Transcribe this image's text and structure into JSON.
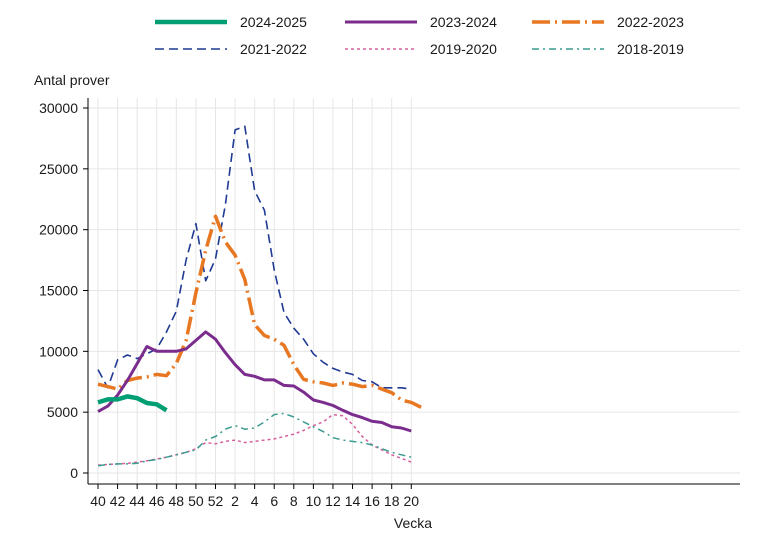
{
  "chart_data": {
    "type": "line",
    "title": "",
    "ylabel": "Antal prover",
    "xlabel": "Vecka",
    "ylim": [
      0,
      30000
    ],
    "yticks": [
      0,
      5000,
      10000,
      15000,
      20000,
      25000,
      30000
    ],
    "xticks": [
      "40",
      "42",
      "44",
      "46",
      "48",
      "50",
      "52",
      "2",
      "4",
      "6",
      "8",
      "10",
      "12",
      "14",
      "16",
      "18",
      "20"
    ],
    "grid": true,
    "legend_position": "top",
    "series": [
      {
        "name": "2024-2025",
        "color": "#009E73",
        "style": "solid-thick",
        "values": [
          5800,
          6050,
          6050,
          6300,
          6150,
          5750,
          5650,
          5150
        ]
      },
      {
        "name": "2023-2024",
        "color": "#7B2D8E",
        "style": "solid",
        "values": [
          5050,
          5500,
          6400,
          7600,
          9000,
          10400,
          10000,
          10000,
          10000,
          10200,
          10900,
          11600,
          11000,
          9900,
          8900,
          8100,
          7950,
          7650,
          7650,
          7200,
          7150,
          6650,
          6000,
          5800,
          5550,
          5150,
          4800,
          4550,
          4250,
          4150,
          3800,
          3700,
          3450
        ]
      },
      {
        "name": "2022-2023",
        "color": "#E87722",
        "style": "longdash-dot",
        "values": [
          7300,
          7100,
          6900,
          7600,
          7800,
          7900,
          8100,
          8000,
          9000,
          10900,
          14800,
          18300,
          21100,
          19000,
          17900,
          15900,
          12200,
          11300,
          11000,
          10500,
          8900,
          7700,
          7500,
          7400,
          7200,
          7400,
          7300,
          7100,
          7200,
          6900,
          6600,
          6000,
          5800,
          5400
        ]
      },
      {
        "name": "2021-2022",
        "color": "#1F3A93",
        "style": "dash",
        "values": [
          8500,
          7000,
          9300,
          9700,
          9400,
          9800,
          10200,
          11600,
          13300,
          17500,
          20500,
          15800,
          17600,
          22000,
          28200,
          28500,
          23200,
          21600,
          16700,
          13200,
          11900,
          11000,
          9800,
          9100,
          8600,
          8300,
          8100,
          7600,
          7500,
          7000,
          7000,
          7000,
          6900
        ]
      },
      {
        "name": "2019-2020",
        "color": "#D6609E",
        "style": "dot",
        "values": [
          650,
          700,
          750,
          800,
          900,
          1000,
          1150,
          1300,
          1500,
          1700,
          2000,
          2500,
          2400,
          2600,
          2700,
          2500,
          2600,
          2700,
          2800,
          3000,
          3200,
          3500,
          3900,
          4200,
          4800,
          4700,
          4000,
          3000,
          2300,
          1900,
          1500,
          1200,
          900
        ]
      },
      {
        "name": "2018-2019",
        "color": "#3A9B8E",
        "style": "dash-dot",
        "values": [
          600,
          700,
          750,
          750,
          800,
          1000,
          1100,
          1300,
          1500,
          1700,
          1900,
          2700,
          3000,
          3600,
          3900,
          3600,
          3700,
          4200,
          4800,
          4900,
          4600,
          4200,
          3800,
          3400,
          2900,
          2700,
          2600,
          2500,
          2300,
          2000,
          1700,
          1500,
          1300
        ]
      }
    ]
  }
}
